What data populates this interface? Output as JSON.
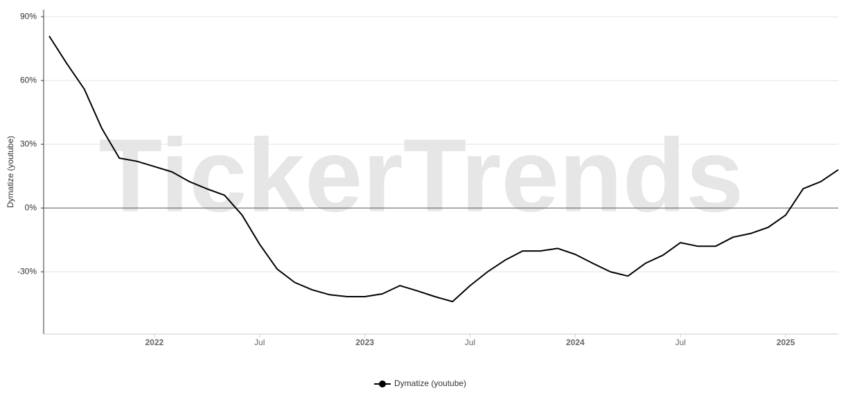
{
  "chart_data": {
    "type": "line",
    "watermark": "TickerTrends",
    "y_label": "Dymatize  (youtube)",
    "x": [
      "2021-07",
      "2021-08",
      "2021-09",
      "2021-10",
      "2021-11",
      "2021-12",
      "2022-01",
      "2022-02",
      "2022-03",
      "2022-04",
      "2022-05",
      "2022-06",
      "2022-07",
      "2022-08",
      "2022-09",
      "2022-10",
      "2022-11",
      "2022-12",
      "2023-01",
      "2023-02",
      "2023-03",
      "2023-04",
      "2023-05",
      "2023-06",
      "2023-07",
      "2023-08",
      "2023-09",
      "2023-10",
      "2023-11",
      "2023-12",
      "2024-01",
      "2024-02",
      "2024-03",
      "2024-04",
      "2024-05",
      "2024-06",
      "2024-07",
      "2024-08",
      "2024-09",
      "2024-10",
      "2024-11",
      "2024-12",
      "2025-01",
      "2025-02",
      "2025-03",
      "2025-04"
    ],
    "series": [
      {
        "name": "Dymatize  (youtube)",
        "color": "#000000",
        "values": [
          80.9,
          68,
          56,
          37.5,
          23.5,
          22,
          19.5,
          17,
          12.4,
          9,
          6,
          -3.3,
          -17,
          -28.7,
          -35,
          -38.5,
          -40.8,
          -41.7,
          -41.7,
          -40.4,
          -36.5,
          -39,
          -41.7,
          -44,
          -36.5,
          -30,
          -24.5,
          -20.2,
          -20.2,
          -19,
          -21.8,
          -26,
          -30,
          -32,
          -26,
          -22.2,
          -16.3,
          -18,
          -18,
          -13.7,
          -12,
          -9.1,
          -3.3,
          9.1,
          12.4,
          18
        ]
      }
    ],
    "xlim": [
      "2021-07",
      "2025-04"
    ],
    "xticks": [
      {
        "value": "2022-01",
        "label": "2022"
      },
      {
        "value": "2022-07",
        "label": "Jul"
      },
      {
        "value": "2023-01",
        "label": "2023"
      },
      {
        "value": "2023-07",
        "label": "Jul"
      },
      {
        "value": "2024-01",
        "label": "2024"
      },
      {
        "value": "2024-07",
        "label": "Jul"
      },
      {
        "value": "2025-01",
        "label": "2025"
      }
    ],
    "ylim": [
      -59.3,
      93.3
    ],
    "yticks": [
      {
        "value": 90,
        "label": "90%"
      },
      {
        "value": 60,
        "label": "60%"
      },
      {
        "value": 30,
        "label": "30%"
      },
      {
        "value": 0,
        "label": "0%"
      },
      {
        "value": -30,
        "label": "-30%"
      }
    ],
    "grid": true
  }
}
